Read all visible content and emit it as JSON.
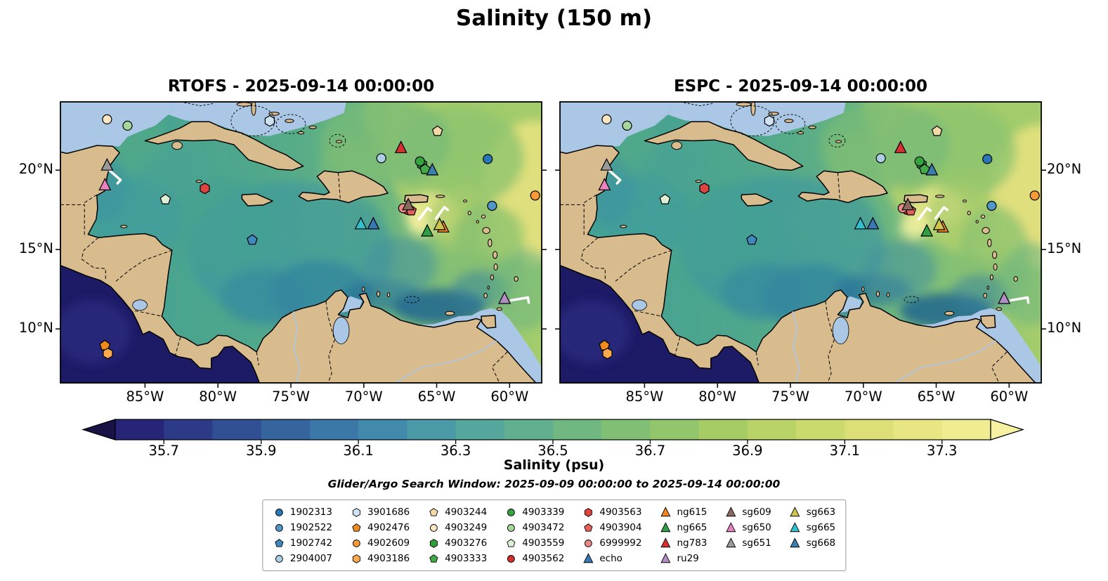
{
  "title": "Salinity (150 m)",
  "panels": [
    {
      "title": "RTOFS - 2025-09-14 00:00:00"
    },
    {
      "title": "ESPC - 2025-09-14 00:00:00"
    }
  ],
  "search_window": "Glider/Argo Search Window: 2025-09-09 00:00:00 to 2025-09-14 00:00:00",
  "legend": {
    "column_sizes": [
      4,
      4,
      4,
      4,
      4,
      4,
      3,
      3
    ]
  },
  "chart_data": {
    "type": "map",
    "subplot_titles": [
      "RTOFS - 2025-09-14 00:00:00",
      "ESPC - 2025-09-14 00:00:00"
    ],
    "lon_range": [
      -90.8,
      -57.8
    ],
    "lat_range": [
      6.6,
      24.3
    ],
    "x_ticks": [
      {
        "lon": -85,
        "label": "85°W"
      },
      {
        "lon": -80,
        "label": "80°W"
      },
      {
        "lon": -75,
        "label": "75°W"
      },
      {
        "lon": -70,
        "label": "70°W"
      },
      {
        "lon": -65,
        "label": "65°W"
      },
      {
        "lon": -60,
        "label": "60°W"
      }
    ],
    "y_ticks": [
      {
        "lat": 20,
        "label": "20°N"
      },
      {
        "lat": 15,
        "label": "15°N"
      },
      {
        "lat": 10,
        "label": "10°N"
      }
    ],
    "colorbar": {
      "label": "Salinity (psu)",
      "range": [
        35.6,
        37.4
      ],
      "ticks": [
        35.7,
        35.9,
        36.1,
        36.3,
        36.5,
        36.7,
        36.9,
        37.1,
        37.3
      ],
      "under_color": "#171347",
      "over_color": "#f6f1a3",
      "colors": [
        "#262578",
        "#2c3a88",
        "#315093",
        "#36649d",
        "#3b78a8",
        "#428aac",
        "#4a9aa8",
        "#55a69c",
        "#61af8e",
        "#70b781",
        "#81bf75",
        "#93c66c",
        "#a6cc66",
        "#b9d366",
        "#ccd96c",
        "#dcdf76",
        "#e8e682",
        "#f0ec92"
      ]
    },
    "vectors": [
      {
        "lon": -87.45,
        "lat": 20.0,
        "dx": 16,
        "dy": 14
      },
      {
        "lon": -66.2,
        "lat": 16.9,
        "dx": 12,
        "dy": -16
      },
      {
        "lon": -65.05,
        "lat": 16.95,
        "dx": 12,
        "dy": -16
      },
      {
        "lon": -59.9,
        "lat": 11.8,
        "dx": 24,
        "dy": -4
      }
    ],
    "platforms": [
      {
        "id": "1902313",
        "shape": "circle",
        "color": "#2878b8",
        "lon": -61.5,
        "lat": 20.7
      },
      {
        "id": "1902522",
        "shape": "circle",
        "color": "#4e97c6",
        "lon": -61.2,
        "lat": 17.75
      },
      {
        "id": "1902742",
        "shape": "pentagon",
        "color": "#3f88be",
        "lon": -77.65,
        "lat": 15.6
      },
      {
        "id": "2904007",
        "shape": "circle",
        "color": "#a8cfe4",
        "lon": -68.8,
        "lat": 20.75
      },
      {
        "id": "3901686",
        "shape": "hexagon",
        "color": "#cfe2f1",
        "lon": -76.45,
        "lat": 23.1
      },
      {
        "id": "4902476",
        "shape": "pentagon",
        "color": "#f08c1e",
        "lon": -87.75,
        "lat": 8.95
      },
      {
        "id": "4902609",
        "shape": "circle",
        "color": "#f89a38",
        "lon": -58.25,
        "lat": 18.4
      },
      {
        "id": "4903186",
        "shape": "hexagon",
        "color": "#fbab4d",
        "lon": -87.55,
        "lat": 8.45
      },
      {
        "id": "4903244",
        "shape": "pentagon",
        "color": "#f3d9a7",
        "lon": -64.95,
        "lat": 22.45
      },
      {
        "id": "4903249",
        "shape": "circle",
        "color": "#fbe6c3",
        "lon": -87.6,
        "lat": 23.2
      },
      {
        "id": "4903276",
        "shape": "hexagon",
        "color": "#2f9e3c",
        "lon": -66.0,
        "lat": 20.35
      },
      {
        "id": "4903333",
        "shape": "pentagon",
        "color": "#44aa48",
        "lon": -65.8,
        "lat": 20.05
      },
      {
        "id": "4903339",
        "shape": "circle",
        "color": "#35a340",
        "lon": -66.15,
        "lat": 20.55
      },
      {
        "id": "4903472",
        "shape": "circle",
        "color": "#a5d79c",
        "lon": -86.2,
        "lat": 22.8
      },
      {
        "id": "4903559",
        "shape": "pentagon",
        "color": "#ddf0d6",
        "lon": -83.6,
        "lat": 18.15
      },
      {
        "id": "4903562",
        "shape": "circle",
        "color": "#d32f2e",
        "lon": -67.0,
        "lat": 17.5
      },
      {
        "id": "4903563",
        "shape": "hexagon",
        "color": "#dc4440",
        "lon": -80.9,
        "lat": 18.85
      },
      {
        "id": "4903904",
        "shape": "pentagon",
        "color": "#e4605c",
        "lon": -66.75,
        "lat": 17.45
      },
      {
        "id": "6999992",
        "shape": "circle",
        "color": "#e98985",
        "lon": -67.3,
        "lat": 17.6
      },
      {
        "id": "echo",
        "shape": "triangle",
        "color": "#3878b4",
        "lon": -69.35,
        "lat": 16.6
      },
      {
        "id": "ng615",
        "shape": "triangle",
        "color": "#f5861f",
        "lon": -64.55,
        "lat": 16.4
      },
      {
        "id": "ng665",
        "shape": "triangle",
        "color": "#2f9e45",
        "lon": -65.65,
        "lat": 16.15
      },
      {
        "id": "ng783",
        "shape": "triangle",
        "color": "#d8302f",
        "lon": -67.45,
        "lat": 21.4
      },
      {
        "id": "ru29",
        "shape": "triangle",
        "color": "#b48ec6",
        "lon": -60.35,
        "lat": 11.9
      },
      {
        "id": "sg609",
        "shape": "triangle",
        "color": "#8a6a5e",
        "lon": -66.95,
        "lat": 17.8
      },
      {
        "id": "sg650",
        "shape": "triangle",
        "color": "#e883c0",
        "lon": -87.75,
        "lat": 19.05
      },
      {
        "id": "sg651",
        "shape": "triangle",
        "color": "#9a9a9a",
        "lon": -87.6,
        "lat": 20.3
      },
      {
        "id": "sg663",
        "shape": "triangle",
        "color": "#cfc44e",
        "lon": -64.8,
        "lat": 16.55
      },
      {
        "id": "sg665",
        "shape": "triangle",
        "color": "#30c0d0",
        "lon": -70.2,
        "lat": 16.6
      },
      {
        "id": "sg668",
        "shape": "triangle",
        "color": "#3a7fae",
        "lon": -65.3,
        "lat": 20.0
      }
    ]
  }
}
